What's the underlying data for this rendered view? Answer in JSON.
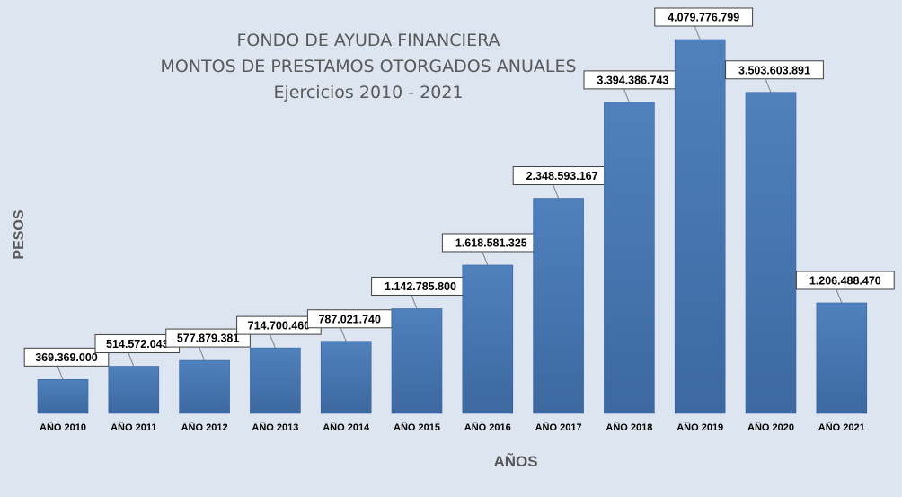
{
  "chart_data": {
    "type": "bar",
    "title": [
      "FONDO DE AYUDA FINANCIERA",
      "MONTOS DE PRESTAMOS OTORGADOS ANUALES",
      "Ejercicios 2010 - 2021"
    ],
    "xlabel": "AÑOS",
    "ylabel": "PESOS",
    "categories": [
      "AÑO 2010",
      "AÑO 2011",
      "AÑO 2012",
      "AÑO 2013",
      "AÑO 2014",
      "AÑO 2015",
      "AÑO 2016",
      "AÑO 2017",
      "AÑO 2018",
      "AÑO 2019",
      "AÑO 2020",
      "AÑO 2021"
    ],
    "values": [
      369369000,
      514572043,
      577879381,
      714700460,
      787021740,
      1142785800,
      1618581325,
      2348593167,
      3394386743,
      4079776799,
      3503603891,
      1206488470
    ],
    "data_labels": [
      "369.369.000",
      "514.572.043",
      "577.879.381",
      "714.700.460",
      "787.021.740",
      "1.142.785.800",
      "1.618.581.325",
      "2.348.593.167",
      "3.394.386.743",
      "4.079.776.799",
      "3.503.603.891",
      "1.206.488.470"
    ],
    "ylim": [
      0,
      4079776799
    ],
    "grid": false,
    "legend": "none",
    "colors": {
      "bar": "#4f81bd",
      "bar_dark": "#3d68a0",
      "background": "#dde6f0",
      "label_box": "#ffffff",
      "text": "#595959"
    }
  }
}
